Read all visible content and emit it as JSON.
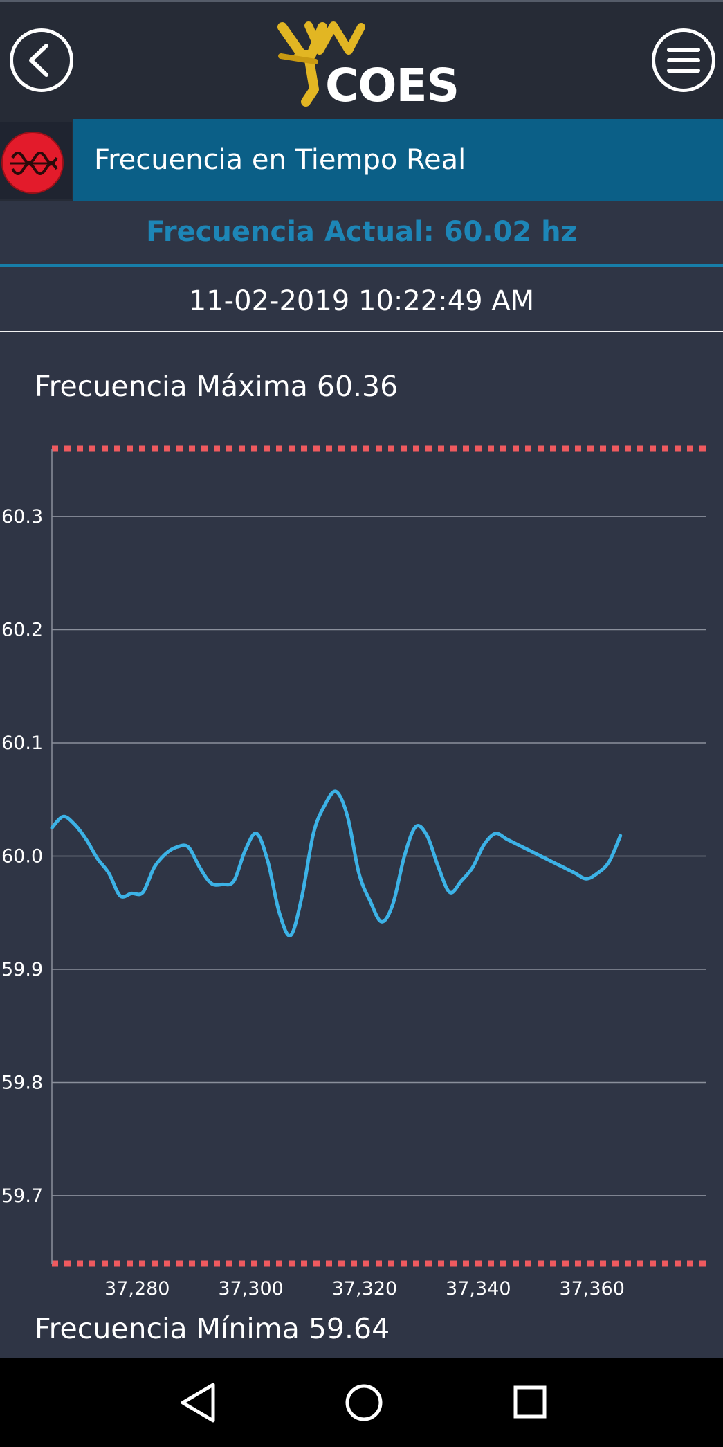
{
  "header": {
    "logo_text": "COES",
    "section_title": "Frecuencia en Tiempo Real"
  },
  "status": {
    "current_frequency": "Frecuencia Actual: 60.02 hz",
    "timestamp": "11-02-2019 10:22:49 AM"
  },
  "limits": {
    "max_label": "Frecuencia Máxima 60.36",
    "min_label": "Frecuencia Mínima 59.64"
  },
  "icons": {
    "back": "chevron-left-icon",
    "menu": "hamburger-menu-icon",
    "section": "frequency-wave-icon",
    "nav_back": "triangle-back-icon",
    "nav_home": "circle-home-icon",
    "nav_recent": "square-recent-icon"
  },
  "colors": {
    "line": "#3cb2e6",
    "limit": "#ef5a5f",
    "accent": "#1d86b7",
    "header_bar": "#0b5f87"
  },
  "chart_data": {
    "type": "line",
    "xlim": [
      37265,
      37380
    ],
    "ylim": [
      59.64,
      60.36
    ],
    "x_ticks": [
      37280,
      37300,
      37320,
      37340,
      37360
    ],
    "x_tick_labels": [
      "37,280",
      "37,300",
      "37,320",
      "37,340",
      "37,360"
    ],
    "y_ticks": [
      59.7,
      59.8,
      59.9,
      60.0,
      60.1,
      60.2,
      60.3
    ],
    "y_tick_labels": [
      "59.7",
      "59.8",
      "59.9",
      "60.0",
      "60.1",
      "60.2",
      "60.3"
    ],
    "max_line": 60.36,
    "min_line": 59.64,
    "grid": true,
    "series": [
      {
        "x": [
          37265,
          37267,
          37269,
          37271,
          37273,
          37275,
          37277,
          37279,
          37281,
          37283,
          37285,
          37287,
          37289,
          37291,
          37293,
          37295,
          37297,
          37299,
          37301,
          37303,
          37305,
          37307,
          37309,
          37311,
          37313,
          37315,
          37317,
          37319,
          37321,
          37323,
          37325,
          37327,
          37329,
          37331,
          37333,
          37335,
          37337,
          37339,
          37341,
          37343,
          37345,
          37347,
          37349,
          37351,
          37353,
          37355,
          37357,
          37359,
          37361,
          37363,
          37365
        ],
        "y": [
          60.025,
          60.035,
          60.028,
          60.015,
          59.998,
          59.985,
          59.965,
          59.967,
          59.968,
          59.99,
          60.002,
          60.008,
          60.008,
          59.99,
          59.976,
          59.975,
          59.978,
          60.005,
          60.02,
          59.995,
          59.95,
          59.93,
          59.965,
          60.02,
          60.045,
          60.057,
          60.035,
          59.985,
          59.96,
          59.942,
          59.958,
          60.0,
          60.026,
          60.018,
          59.99,
          59.968,
          59.978,
          59.99,
          60.01,
          60.02,
          60.015,
          60.01,
          60.005,
          60.0,
          59.995,
          59.99,
          59.985,
          59.98,
          59.985,
          59.995,
          60.018
        ]
      }
    ]
  }
}
